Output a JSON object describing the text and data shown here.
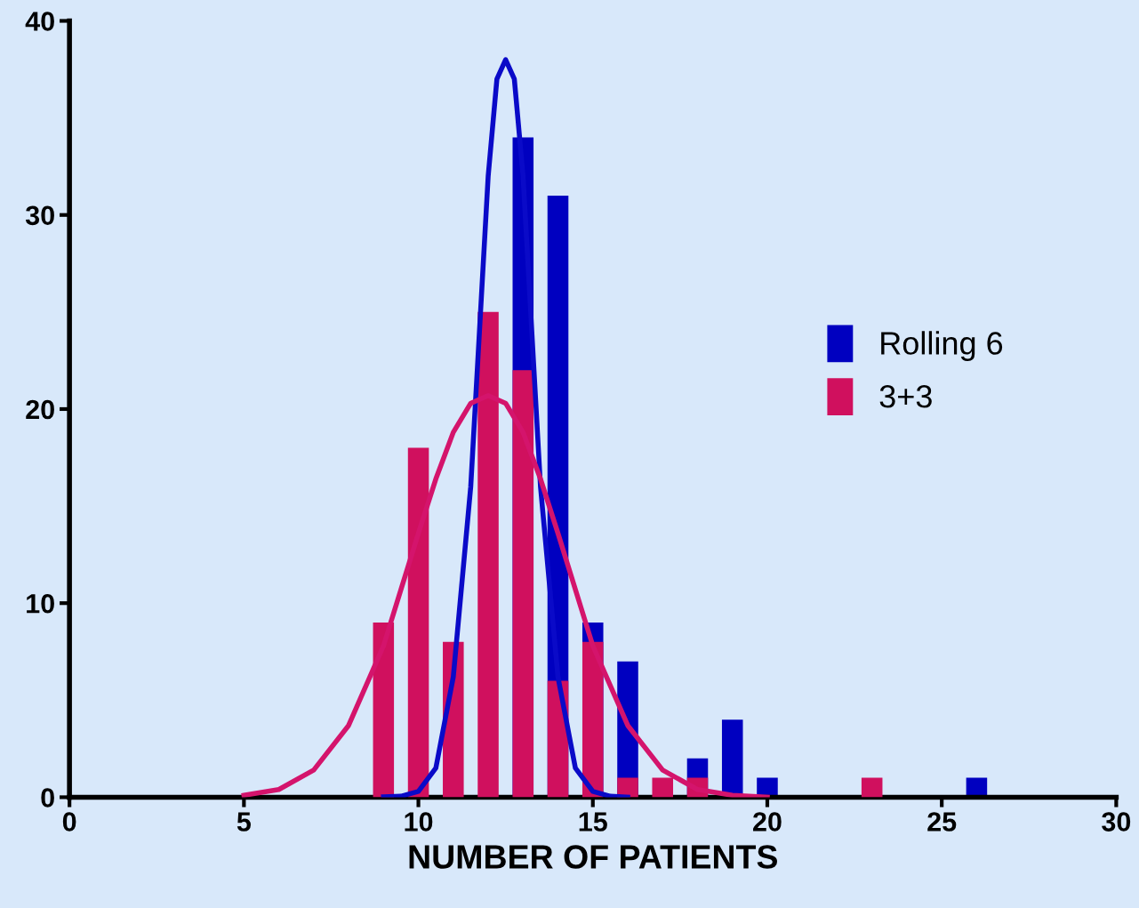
{
  "chart_data": {
    "type": "bar",
    "xlabel": "NUMBER OF PATIENTS",
    "xlim": [
      0,
      30
    ],
    "xticks": [
      0,
      5,
      10,
      15,
      20,
      25,
      30
    ],
    "ylim": [
      0,
      40
    ],
    "yticks": [
      0,
      10,
      20,
      30,
      40
    ],
    "grid": false,
    "legend": "right",
    "series": [
      {
        "name": "Rolling 6",
        "color": "#0000c0",
        "x": [
          13,
          14,
          15,
          16,
          18,
          19,
          20,
          26
        ],
        "values": [
          34,
          31,
          9,
          7,
          2,
          4,
          1,
          1
        ]
      },
      {
        "name": "3+3",
        "color": "#d0105e",
        "x": [
          9,
          10,
          11,
          12,
          13,
          14,
          15,
          16,
          17,
          18,
          23
        ],
        "values": [
          9,
          18,
          8,
          25,
          22,
          6,
          8,
          1,
          1,
          1,
          1
        ]
      },
      {
        "type": "line",
        "color": "#0a0ac8",
        "x": [
          9,
          9.5,
          10,
          10.5,
          11,
          11.5,
          11.75,
          12,
          12.25,
          12.5,
          12.75,
          13,
          13.25,
          13.5,
          14,
          14.5,
          15,
          15.5,
          16
        ],
        "values": [
          0.02,
          0.05,
          0.3,
          1.5,
          6.2,
          16,
          24,
          32,
          37,
          38,
          37,
          32,
          24,
          16,
          6.2,
          1.5,
          0.3,
          0.05,
          0
        ]
      },
      {
        "type": "line",
        "color": "#d4146c",
        "x": [
          5,
          6,
          7,
          8,
          9,
          10,
          10.5,
          11,
          11.5,
          12,
          12.5,
          13,
          13.5,
          14,
          15,
          16,
          17,
          18,
          19,
          20
        ],
        "values": [
          0.1,
          0.4,
          1.4,
          3.7,
          7.8,
          13.6,
          16.4,
          18.8,
          20.3,
          20.7,
          20.3,
          18.8,
          16.4,
          13.6,
          7.8,
          3.7,
          1.4,
          0.4,
          0.1,
          0
        ]
      }
    ]
  }
}
